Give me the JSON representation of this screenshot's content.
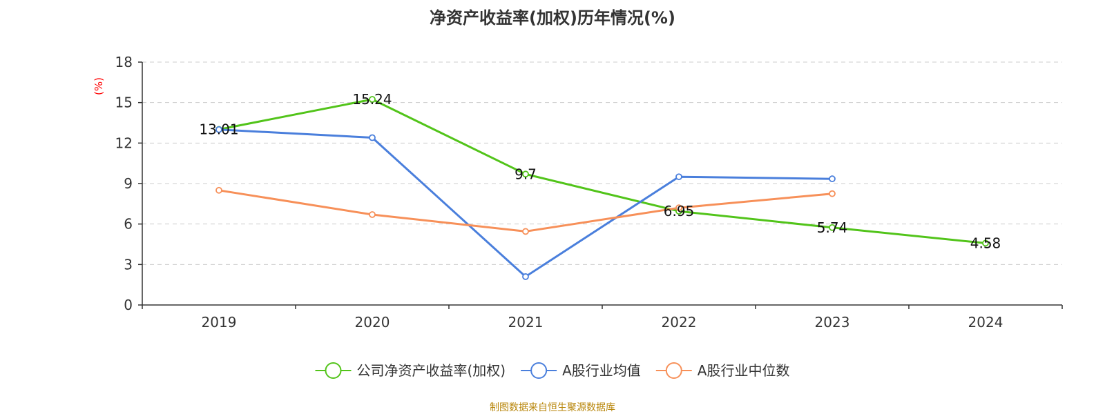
{
  "chart_data": {
    "type": "line",
    "title": "净资产收益率(加权)历年情况(%)",
    "ylabel": "(%)",
    "ylabel_color": "#ff0000",
    "categories": [
      "2019",
      "2020",
      "2021",
      "2022",
      "2023",
      "2024"
    ],
    "ylim": [
      0,
      18
    ],
    "yticks": [
      0,
      3,
      6,
      9,
      12,
      15,
      18
    ],
    "grid": true,
    "legend_position": "bottom",
    "series": [
      {
        "name": "公司净资产收益率(加权)",
        "color": "#52c41a",
        "values": [
          13.01,
          15.24,
          9.7,
          6.95,
          5.74,
          4.58
        ],
        "labels": [
          "13.01",
          "15.24",
          "9.7",
          "6.95",
          "5.74",
          "4.58"
        ]
      },
      {
        "name": "A股行业均值",
        "color": "#4a7fdc",
        "values": [
          13.0,
          12.4,
          2.1,
          9.5,
          9.35,
          null
        ]
      },
      {
        "name": "A股行业中位数",
        "color": "#f79059",
        "values": [
          8.5,
          6.7,
          5.45,
          7.2,
          8.25,
          null
        ]
      }
    ]
  },
  "source": "制图数据来自恒生聚源数据库"
}
